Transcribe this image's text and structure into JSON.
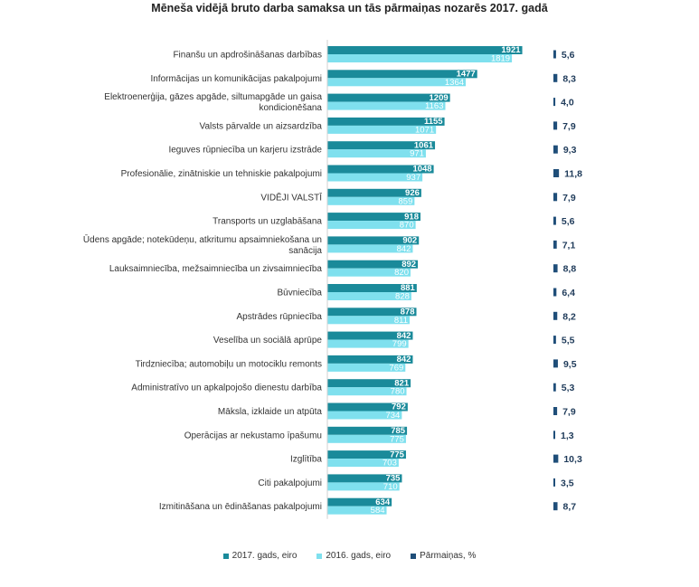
{
  "chart_data": {
    "type": "bar",
    "title": "Mēneša vidējā bruto darba samaksa un tās pārmaiņas nozarēs 2017. gadā",
    "categories": [
      [
        "Finanšu un apdrošināšanas darbības"
      ],
      [
        "Informācijas un komunikācijas pakalpojumi"
      ],
      [
        "Elektroenerģija, gāzes apgāde, siltumapgāde un gaisa",
        "kondicionēšana"
      ],
      [
        "Valsts pārvalde un aizsardzība"
      ],
      [
        "Ieguves rūpniecība un karjeru izstrāde"
      ],
      [
        "Profesionālie, zinātniskie un tehniskie pakalpojumi"
      ],
      [
        "VIDĒJI VALSTĪ"
      ],
      [
        "Transports un uzglabāšana"
      ],
      [
        "Ūdens apgāde; notekūdeņu, atkritumu apsaimniekošana un",
        "sanācija"
      ],
      [
        "Lauksaimniecība, mežsaimniecība un zivsaimniecība"
      ],
      [
        "Būvniecība"
      ],
      [
        "Apstrādes rūpniecība"
      ],
      [
        "Veselība un sociālā aprūpe"
      ],
      [
        "Tirdzniecība; automobiļu un motociklu remonts"
      ],
      [
        "Administratīvo un apkalpojošo dienestu darbība"
      ],
      [
        "Māksla, izklaide un atpūta"
      ],
      [
        "Operācijas ar nekustamo īpašumu"
      ],
      [
        "Izglītība"
      ],
      [
        "Citi pakalpojumi"
      ],
      [
        "Izmitināšana un ēdināšanas pakalpojumi"
      ]
    ],
    "series": [
      {
        "name": "2017. gads, eiro",
        "color": "#1a8a9a",
        "values": [
          1921,
          1477,
          1209,
          1155,
          1061,
          1048,
          926,
          918,
          902,
          892,
          881,
          878,
          842,
          842,
          821,
          792,
          785,
          775,
          735,
          634
        ]
      },
      {
        "name": "2016. gads, eiro",
        "color": "#7fe0ee",
        "values": [
          1819,
          1364,
          1163,
          1071,
          971,
          937,
          859,
          870,
          842,
          820,
          828,
          811,
          799,
          769,
          780,
          734,
          775,
          703,
          710,
          584
        ]
      },
      {
        "name": "Pārmaiņas, %",
        "color": "#1f4e79",
        "values": [
          5.6,
          8.3,
          4.0,
          7.9,
          9.3,
          11.8,
          7.9,
          5.6,
          7.1,
          8.8,
          6.4,
          8.2,
          5.5,
          9.5,
          5.3,
          7.9,
          1.3,
          10.3,
          3.5,
          8.7
        ],
        "labels": [
          "5,6",
          "8,3",
          "4,0",
          "7,9",
          "9,3",
          "11,8",
          "7,9",
          "5,6",
          "7,1",
          "8,8",
          "6,4",
          "8,2",
          "5,5",
          "9,5",
          "5,3",
          "7,9",
          "1,3",
          "10,3",
          "3,5",
          "8,7"
        ]
      }
    ],
    "legend_position": "bottom",
    "grid": false
  }
}
